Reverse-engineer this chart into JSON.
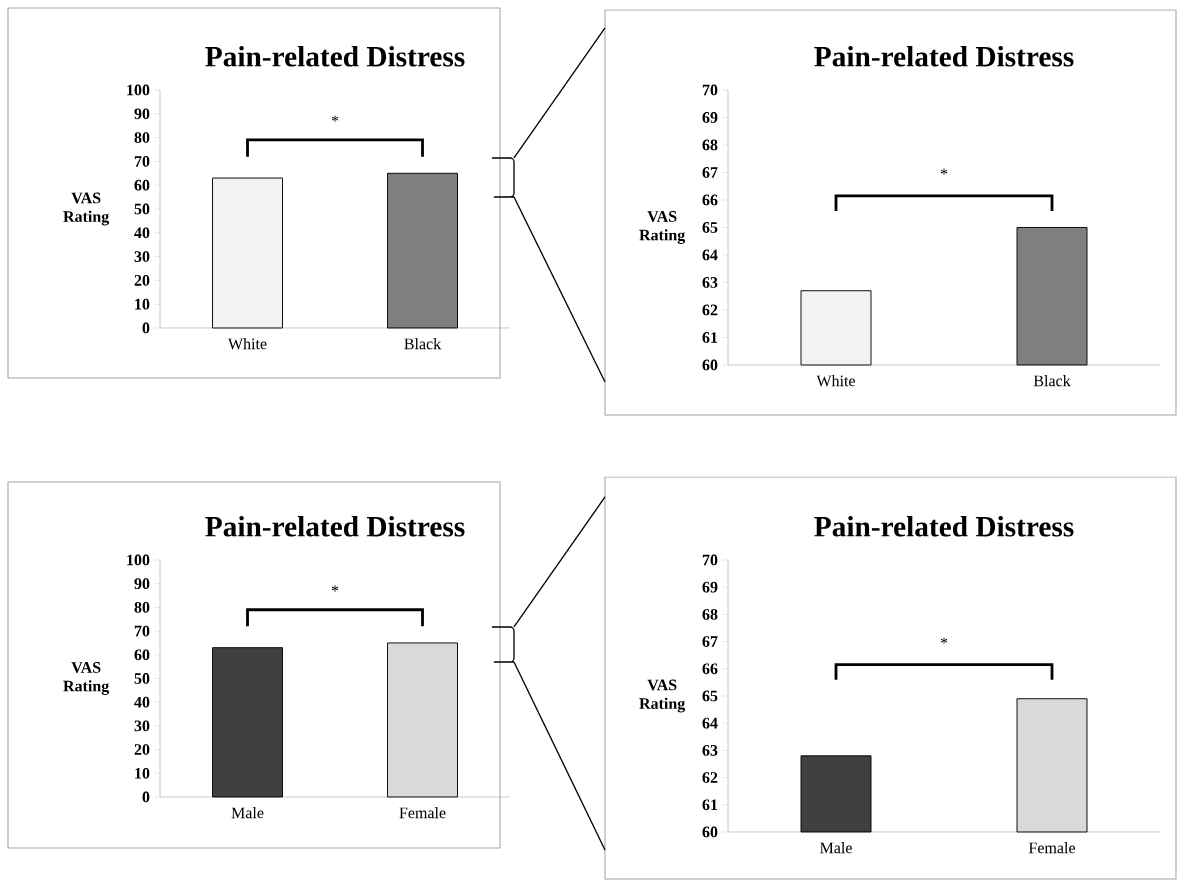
{
  "chart_data": [
    {
      "type": "bar",
      "title": "Pain-related Distress",
      "ylabel": "VAS Rating",
      "categories": [
        "White",
        "Black"
      ],
      "values": [
        63,
        65
      ],
      "colors": [
        "#f2f2f2",
        "#7f7f7f"
      ],
      "ylim": [
        0,
        100
      ],
      "yticks": [
        0,
        10,
        20,
        30,
        40,
        50,
        60,
        70,
        80,
        90,
        100
      ],
      "annotations": [
        "*"
      ]
    },
    {
      "type": "bar",
      "title": "Pain-related Distress",
      "ylabel": "VAS Rating",
      "categories": [
        "White",
        "Black"
      ],
      "values": [
        62.7,
        65.0
      ],
      "colors": [
        "#f2f2f2",
        "#7f7f7f"
      ],
      "ylim": [
        60,
        70
      ],
      "yticks": [
        60,
        61,
        62,
        63,
        64,
        65,
        66,
        67,
        68,
        69,
        70
      ],
      "annotations": [
        "*"
      ]
    },
    {
      "type": "bar",
      "title": "Pain-related Distress",
      "ylabel": "VAS Rating",
      "categories": [
        "Male",
        "Female"
      ],
      "values": [
        63,
        65
      ],
      "colors": [
        "#404040",
        "#d9d9d9"
      ],
      "ylim": [
        0,
        100
      ],
      "yticks": [
        0,
        10,
        20,
        30,
        40,
        50,
        60,
        70,
        80,
        90,
        100
      ],
      "annotations": [
        "*"
      ]
    },
    {
      "type": "bar",
      "title": "Pain-related Distress",
      "ylabel": "VAS Rating",
      "categories": [
        "Male",
        "Female"
      ],
      "values": [
        62.8,
        64.9
      ],
      "colors": [
        "#404040",
        "#d9d9d9"
      ],
      "ylim": [
        60,
        70
      ],
      "yticks": [
        60,
        61,
        62,
        63,
        64,
        65,
        66,
        67,
        68,
        69,
        70
      ],
      "annotations": [
        "*"
      ]
    }
  ]
}
